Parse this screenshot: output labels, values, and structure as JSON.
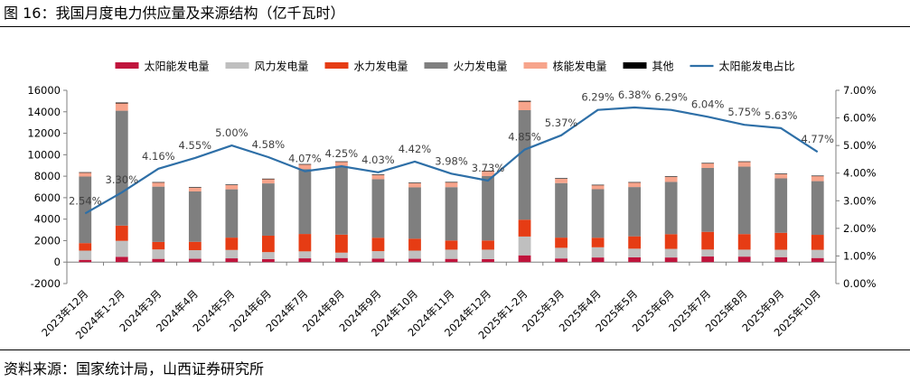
{
  "figure": {
    "title": "图 16：我国月度电力供应量及来源结构（亿千瓦时）",
    "source": "资料来源：国家统计局，山西证券研究所"
  },
  "chart_data": {
    "type": "bar",
    "stacked": true,
    "categories": [
      "2023年12月",
      "2024年1-2月",
      "2024年3月",
      "2024年4月",
      "2024年5月",
      "2024年6月",
      "2024年7月",
      "2024年8月",
      "2024年9月",
      "2024年10月",
      "2024年11月",
      "2024年12月",
      "2025年1-2月",
      "2025年3月",
      "2025年4月",
      "2025年5月",
      "2025年6月",
      "2025年7月",
      "2025年8月",
      "2025年9月",
      "2025年10月"
    ],
    "series": [
      {
        "name": "太阳能发电量",
        "color": "#c0143c",
        "values": [
          210,
          490,
          300,
          310,
          350,
          280,
          350,
          380,
          330,
          310,
          300,
          280,
          630,
          340,
          430,
          450,
          430,
          520,
          510,
          460,
          380
        ]
      },
      {
        "name": "风力发电量",
        "color": "#bfbfbf",
        "values": [
          860,
          1490,
          880,
          800,
          780,
          650,
          650,
          500,
          690,
          760,
          860,
          880,
          1750,
          990,
          950,
          800,
          800,
          650,
          650,
          690,
          760
        ]
      },
      {
        "name": "水力发电量",
        "color": "#e63c14",
        "values": [
          700,
          1420,
          700,
          780,
          1150,
          1530,
          1620,
          1680,
          1250,
          1110,
          850,
          850,
          1570,
          950,
          890,
          1150,
          1370,
          1650,
          1450,
          1580,
          1400
        ]
      },
      {
        "name": "火力发电量",
        "color": "#7f7f7f",
        "values": [
          6200,
          10700,
          5150,
          4690,
          4500,
          4870,
          6050,
          6350,
          5450,
          4780,
          4970,
          6000,
          10200,
          5080,
          4520,
          4590,
          4870,
          5950,
          6280,
          5070,
          5000
        ]
      },
      {
        "name": "核能发电量",
        "color": "#f7a48b",
        "values": [
          360,
          680,
          380,
          360,
          400,
          400,
          420,
          430,
          400,
          400,
          440,
          460,
          790,
          410,
          370,
          420,
          480,
          420,
          450,
          400,
          470
        ]
      },
      {
        "name": "其他",
        "color": "#000000",
        "values": [
          40,
          80,
          40,
          40,
          40,
          40,
          40,
          40,
          40,
          40,
          40,
          40,
          80,
          40,
          40,
          40,
          40,
          40,
          40,
          40,
          40
        ]
      }
    ],
    "line": {
      "name": "太阳能发电占比",
      "color": "#2e6fa7",
      "values": [
        2.54,
        3.3,
        4.16,
        4.55,
        5.0,
        4.58,
        4.07,
        4.25,
        4.03,
        4.42,
        3.98,
        3.73,
        4.85,
        5.37,
        6.29,
        6.38,
        6.29,
        6.04,
        5.75,
        5.63,
        4.77
      ],
      "labels": [
        "2.54%",
        "3.30%",
        "4.16%",
        "4.55%",
        "5.00%",
        "4.58%",
        "4.07%",
        "4.25%",
        "4.03%",
        "4.42%",
        "3.98%",
        "3.73%",
        "4.85%",
        "5.37%",
        "6.29%",
        "6.38%",
        "6.29%",
        "6.04%",
        "5.75%",
        "5.63%",
        "4.77%"
      ]
    },
    "y_left": {
      "min": -2000,
      "max": 16000,
      "step": 2000,
      "ticks": [
        "-2000",
        "0",
        "2000",
        "4000",
        "6000",
        "8000",
        "10000",
        "12000",
        "14000",
        "16000"
      ]
    },
    "y_right": {
      "min": 0,
      "max": 7,
      "step": 1,
      "ticks": [
        "0.00%",
        "1.00%",
        "2.00%",
        "3.00%",
        "4.00%",
        "5.00%",
        "6.00%",
        "7.00%"
      ]
    },
    "legend_position": "top",
    "grid": false
  }
}
